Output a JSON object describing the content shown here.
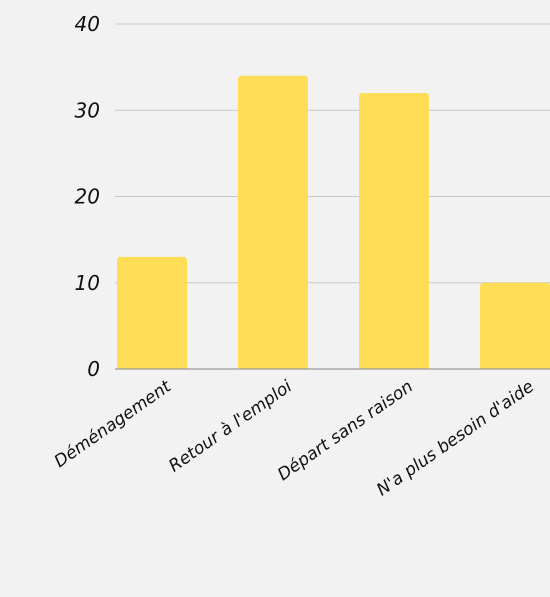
{
  "chart_data": {
    "type": "bar",
    "title": "",
    "xlabel": "",
    "ylabel": "",
    "categories": [
      "Déménagement",
      "Retour à l'emploi",
      "Départ sans raison",
      "N'a plus besoin d'aide"
    ],
    "values": [
      13,
      34,
      32,
      10
    ],
    "ylim": [
      0,
      40
    ],
    "yticks": [
      0,
      10,
      20,
      30,
      40
    ],
    "grid": true,
    "legend": "none",
    "bar_color": "#ffdd57"
  }
}
